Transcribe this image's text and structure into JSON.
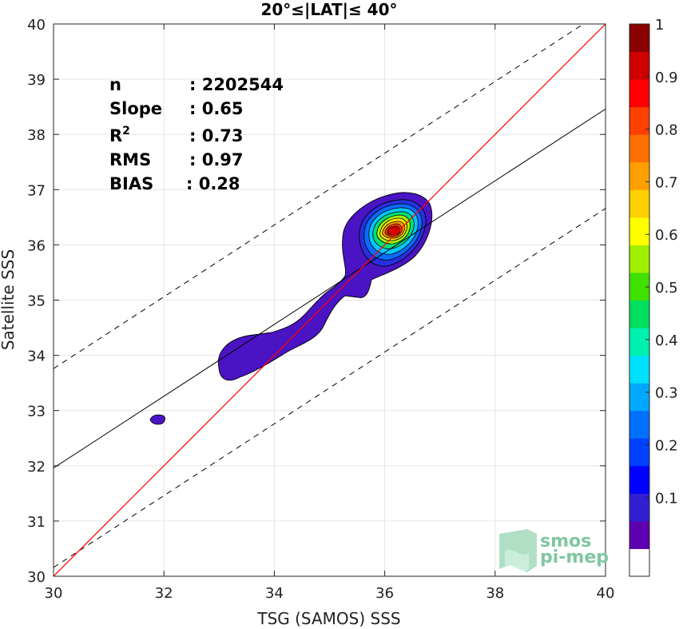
{
  "chart_data": {
    "type": "scatter",
    "title": "20°≤|LAT|≤ 40°",
    "xlabel": "TSG (SAMOS) SSS",
    "ylabel": "Satellite SSS",
    "xlim": [
      30,
      40
    ],
    "ylim": [
      30,
      40
    ],
    "xticks": [
      "30",
      "32",
      "34",
      "36",
      "38",
      "40"
    ],
    "yticks": [
      "30",
      "31",
      "32",
      "33",
      "34",
      "35",
      "36",
      "37",
      "38",
      "39",
      "40"
    ],
    "grid": true,
    "stats": [
      {
        "label": "n",
        "value": ": 2202544"
      },
      {
        "label": "Slope",
        "value": ": 0.65"
      },
      {
        "label": "R",
        "sup": "2",
        "value": ": 0.73"
      },
      {
        "label": "RMS",
        "value": ": 0.97"
      },
      {
        "label": "BIAS",
        "value": ": 0.28"
      }
    ],
    "reference_lines": {
      "one_to_one": {
        "slope": 1,
        "intercept": 0,
        "color": "#ff0000"
      },
      "fit": {
        "slope": 0.65,
        "intercept": 12.46,
        "color": "#000000"
      },
      "upper_dashed": {
        "slope": 0.65,
        "intercept": 14.26,
        "color": "#000000"
      },
      "lower_dashed": {
        "slope": 0.65,
        "intercept": 10.66,
        "color": "#000000"
      }
    },
    "density_peak": {
      "x": 36.15,
      "y": 36.25
    },
    "colorbar": {
      "ticks": [
        "0.1",
        "0.2",
        "0.3",
        "0.4",
        "0.5",
        "0.6",
        "0.7",
        "0.8",
        "0.9",
        "1"
      ],
      "levels": [
        "#ffffff",
        "#5c00b0",
        "#3020d0",
        "#0000ff",
        "#0040ff",
        "#0070ff",
        "#00a8ff",
        "#00e0ff",
        "#00f0b0",
        "#00e060",
        "#40e000",
        "#a0f000",
        "#ffff00",
        "#ffd000",
        "#ffa000",
        "#ff7000",
        "#ff4000",
        "#ff0000",
        "#d00000",
        "#8b0000"
      ]
    },
    "logo": [
      "smos",
      "pi-mep"
    ]
  }
}
